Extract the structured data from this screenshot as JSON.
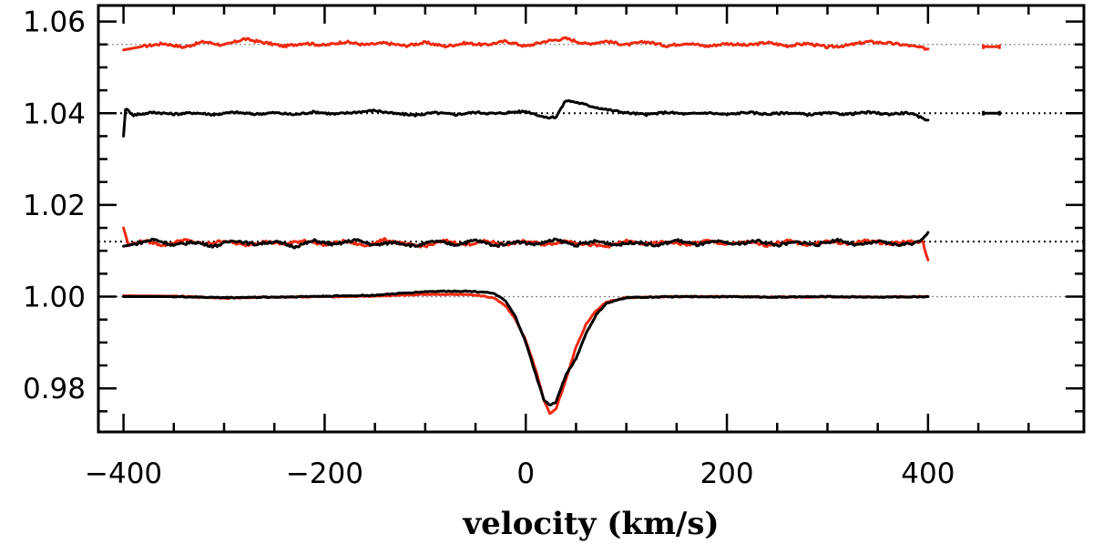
{
  "chart_data": {
    "type": "line",
    "title": "",
    "xlabel": "velocity (km/s)",
    "ylabel": "",
    "xlim": [
      -425,
      555
    ],
    "ylim": [
      0.9705,
      1.0635
    ],
    "x_ticks": [
      -400,
      -200,
      0,
      200,
      400
    ],
    "x_tick_labels": [
      "−400",
      "−200",
      "0",
      "200",
      "400"
    ],
    "y_ticks": [
      0.98,
      1.0,
      1.02,
      1.04,
      1.06
    ],
    "y_tick_labels": [
      "0.98",
      "1.00",
      "1.02",
      "1.04",
      "1.06"
    ],
    "x_range": [
      -400,
      400
    ],
    "colors": {
      "red": "#ee2a10",
      "black": "#000000",
      "reference": "#8a8a8a",
      "axis": "#000000"
    },
    "reference_lines": [
      {
        "name": "ref-1.055",
        "y": 1.055,
        "style": "dotted"
      },
      {
        "name": "ref-1.040",
        "y": 1.04,
        "style": "dotted"
      },
      {
        "name": "ref-1.012",
        "y": 1.012,
        "style": "dotted"
      },
      {
        "name": "ref-1.000",
        "y": 1.0,
        "style": "dotted"
      }
    ],
    "series": [
      {
        "name": "stokes-v-red",
        "color": "red",
        "baseline": 1.055,
        "points": [
          [
            -400,
            1.0538
          ],
          [
            -380,
            1.0546
          ],
          [
            -360,
            1.0552
          ],
          [
            -340,
            1.0544
          ],
          [
            -320,
            1.0556
          ],
          [
            -300,
            1.0548
          ],
          [
            -280,
            1.0562
          ],
          [
            -260,
            1.0554
          ],
          [
            -240,
            1.0546
          ],
          [
            -220,
            1.0553
          ],
          [
            -200,
            1.0548
          ],
          [
            -180,
            1.0556
          ],
          [
            -160,
            1.0549
          ],
          [
            -140,
            1.0553
          ],
          [
            -120,
            1.0547
          ],
          [
            -100,
            1.0554
          ],
          [
            -80,
            1.0546
          ],
          [
            -60,
            1.0553
          ],
          [
            -40,
            1.0549
          ],
          [
            -20,
            1.0557
          ],
          [
            0,
            1.0546
          ],
          [
            20,
            1.0557
          ],
          [
            40,
            1.0563
          ],
          [
            60,
            1.0551
          ],
          [
            80,
            1.0557
          ],
          [
            100,
            1.0549
          ],
          [
            120,
            1.0556
          ],
          [
            140,
            1.0547
          ],
          [
            160,
            1.0553
          ],
          [
            180,
            1.0546
          ],
          [
            200,
            1.0552
          ],
          [
            220,
            1.0548
          ],
          [
            240,
            1.0554
          ],
          [
            260,
            1.0547
          ],
          [
            280,
            1.0552
          ],
          [
            300,
            1.0544
          ],
          [
            320,
            1.0548
          ],
          [
            340,
            1.0556
          ],
          [
            360,
            1.0553
          ],
          [
            380,
            1.0548
          ],
          [
            400,
            1.054
          ]
        ]
      },
      {
        "name": "stokes-v-black",
        "color": "black",
        "baseline": 1.04,
        "points": [
          [
            -400,
            1.035
          ],
          [
            -398,
            1.041
          ],
          [
            -390,
            1.0396
          ],
          [
            -370,
            1.0402
          ],
          [
            -350,
            1.0398
          ],
          [
            -330,
            1.0401
          ],
          [
            -310,
            1.0397
          ],
          [
            -290,
            1.0402
          ],
          [
            -270,
            1.0398
          ],
          [
            -250,
            1.0401
          ],
          [
            -230,
            1.0397
          ],
          [
            -210,
            1.0403
          ],
          [
            -190,
            1.0398
          ],
          [
            -170,
            1.0402
          ],
          [
            -150,
            1.0406
          ],
          [
            -130,
            1.0399
          ],
          [
            -110,
            1.0396
          ],
          [
            -90,
            1.0401
          ],
          [
            -70,
            1.0397
          ],
          [
            -50,
            1.0402
          ],
          [
            -30,
            1.0399
          ],
          [
            -10,
            1.0403
          ],
          [
            0,
            1.0404
          ],
          [
            10,
            1.0398
          ],
          [
            20,
            1.039
          ],
          [
            30,
            1.0392
          ],
          [
            40,
            1.0428
          ],
          [
            50,
            1.0424
          ],
          [
            60,
            1.0418
          ],
          [
            80,
            1.0408
          ],
          [
            100,
            1.0401
          ],
          [
            120,
            1.0397
          ],
          [
            140,
            1.0402
          ],
          [
            160,
            1.0398
          ],
          [
            180,
            1.0401
          ],
          [
            200,
            1.0397
          ],
          [
            220,
            1.0402
          ],
          [
            240,
            1.0398
          ],
          [
            260,
            1.0401
          ],
          [
            280,
            1.0397
          ],
          [
            300,
            1.04
          ],
          [
            320,
            1.0398
          ],
          [
            340,
            1.0402
          ],
          [
            360,
            1.0398
          ],
          [
            380,
            1.0401
          ],
          [
            400,
            1.0385
          ]
        ]
      },
      {
        "name": "null-red",
        "color": "red",
        "baseline": 1.012,
        "points": [
          [
            -400,
            1.015
          ],
          [
            -395,
            1.0112
          ],
          [
            -380,
            1.0122
          ],
          [
            -360,
            1.0112
          ],
          [
            -340,
            1.0124
          ],
          [
            -320,
            1.0114
          ],
          [
            -300,
            1.0122
          ],
          [
            -280,
            1.0112
          ],
          [
            -260,
            1.012
          ],
          [
            -240,
            1.0114
          ],
          [
            -220,
            1.0123
          ],
          [
            -200,
            1.0113
          ],
          [
            -180,
            1.0121
          ],
          [
            -160,
            1.0111
          ],
          [
            -140,
            1.0124
          ],
          [
            -120,
            1.0114
          ],
          [
            -100,
            1.011
          ],
          [
            -80,
            1.0122
          ],
          [
            -60,
            1.0113
          ],
          [
            -40,
            1.0121
          ],
          [
            -20,
            1.0114
          ],
          [
            0,
            1.0121
          ],
          [
            20,
            1.0113
          ],
          [
            40,
            1.0122
          ],
          [
            60,
            1.0114
          ],
          [
            80,
            1.0109
          ],
          [
            100,
            1.0121
          ],
          [
            120,
            1.0114
          ],
          [
            140,
            1.012
          ],
          [
            160,
            1.0113
          ],
          [
            180,
            1.0122
          ],
          [
            200,
            1.0114
          ],
          [
            220,
            1.0119
          ],
          [
            240,
            1.0112
          ],
          [
            260,
            1.0122
          ],
          [
            280,
            1.0113
          ],
          [
            300,
            1.0121
          ],
          [
            320,
            1.0114
          ],
          [
            340,
            1.0123
          ],
          [
            360,
            1.0115
          ],
          [
            380,
            1.0121
          ],
          [
            395,
            1.0118
          ],
          [
            400,
            1.008
          ]
        ]
      },
      {
        "name": "null-black",
        "color": "black",
        "baseline": 1.012,
        "points": [
          [
            -400,
            1.011
          ],
          [
            -390,
            1.0114
          ],
          [
            -370,
            1.0125
          ],
          [
            -350,
            1.0112
          ],
          [
            -330,
            1.0119
          ],
          [
            -310,
            1.011
          ],
          [
            -290,
            1.0123
          ],
          [
            -270,
            1.0114
          ],
          [
            -250,
            1.012
          ],
          [
            -230,
            1.0109
          ],
          [
            -210,
            1.0122
          ],
          [
            -190,
            1.0113
          ],
          [
            -170,
            1.0124
          ],
          [
            -150,
            1.0112
          ],
          [
            -130,
            1.0119
          ],
          [
            -110,
            1.011
          ],
          [
            -90,
            1.0121
          ],
          [
            -70,
            1.0113
          ],
          [
            -50,
            1.0123
          ],
          [
            -30,
            1.0111
          ],
          [
            -10,
            1.012
          ],
          [
            10,
            1.0114
          ],
          [
            30,
            1.0124
          ],
          [
            50,
            1.0112
          ],
          [
            70,
            1.0121
          ],
          [
            90,
            1.0113
          ],
          [
            110,
            1.0119
          ],
          [
            130,
            1.0111
          ],
          [
            150,
            1.0123
          ],
          [
            170,
            1.0113
          ],
          [
            190,
            1.012
          ],
          [
            210,
            1.0114
          ],
          [
            230,
            1.0122
          ],
          [
            250,
            1.0112
          ],
          [
            270,
            1.0119
          ],
          [
            290,
            1.0113
          ],
          [
            310,
            1.0124
          ],
          [
            330,
            1.0112
          ],
          [
            350,
            1.012
          ],
          [
            370,
            1.0113
          ],
          [
            390,
            1.0118
          ],
          [
            400,
            1.014
          ]
        ]
      },
      {
        "name": "stokes-i-red",
        "color": "red",
        "baseline": 1.0,
        "points": [
          [
            -400,
            1.0002
          ],
          [
            -350,
            1.0001
          ],
          [
            -300,
            0.9997
          ],
          [
            -250,
            0.9999
          ],
          [
            -200,
            1.0
          ],
          [
            -150,
            1.0001
          ],
          [
            -100,
            1.0005
          ],
          [
            -80,
            1.0005
          ],
          [
            -60,
            1.0004
          ],
          [
            -40,
            1.0001
          ],
          [
            -30,
            0.9995
          ],
          [
            -20,
            0.998
          ],
          [
            -10,
            0.995
          ],
          [
            0,
            0.9905
          ],
          [
            10,
            0.984
          ],
          [
            18,
            0.9775
          ],
          [
            24,
            0.9745
          ],
          [
            30,
            0.9755
          ],
          [
            40,
            0.982
          ],
          [
            50,
            0.989
          ],
          [
            60,
            0.994
          ],
          [
            70,
            0.997
          ],
          [
            80,
            0.9988
          ],
          [
            100,
            0.9998
          ],
          [
            150,
            1.0
          ],
          [
            200,
            1.0
          ],
          [
            250,
            0.9999
          ],
          [
            300,
            1.0
          ],
          [
            350,
            0.9999
          ],
          [
            400,
            1.0
          ]
        ]
      },
      {
        "name": "stokes-i-black",
        "color": "black",
        "baseline": 1.0,
        "points": [
          [
            -400,
            1.0
          ],
          [
            -350,
            1.0
          ],
          [
            -300,
            0.9998
          ],
          [
            -250,
            0.9999
          ],
          [
            -200,
            1.0001
          ],
          [
            -150,
            1.0003
          ],
          [
            -100,
            1.0011
          ],
          [
            -80,
            1.0012
          ],
          [
            -60,
            1.0012
          ],
          [
            -40,
            1.001
          ],
          [
            -30,
            1.0005
          ],
          [
            -20,
            0.999
          ],
          [
            -10,
            0.9955
          ],
          [
            0,
            0.99
          ],
          [
            10,
            0.983
          ],
          [
            18,
            0.9775
          ],
          [
            24,
            0.9763
          ],
          [
            30,
            0.977
          ],
          [
            40,
            0.983
          ],
          [
            50,
            0.9865
          ],
          [
            60,
            0.992
          ],
          [
            70,
            0.996
          ],
          [
            80,
            0.9985
          ],
          [
            100,
            0.9998
          ],
          [
            150,
            1.0
          ],
          [
            200,
            1.0
          ],
          [
            250,
            0.9999
          ],
          [
            300,
            1.0
          ],
          [
            350,
            0.9999
          ],
          [
            400,
            1.0
          ]
        ]
      }
    ],
    "error_bars": [
      {
        "name": "errorbar-red",
        "color": "red",
        "x": 463,
        "y": 1.0545,
        "half_width": 8,
        "half_height": 0.0005
      },
      {
        "name": "errorbar-black",
        "color": "black",
        "x": 463,
        "y": 1.04,
        "half_width": 8,
        "half_height": 0.0005
      }
    ]
  }
}
